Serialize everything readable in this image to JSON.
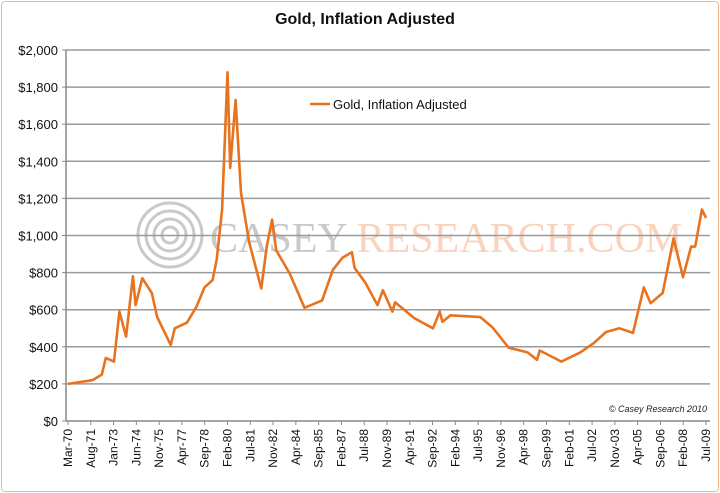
{
  "chart_data": {
    "type": "line",
    "title": "Gold, Inflation Adjusted",
    "xlabel": "",
    "ylabel": "",
    "ylim": [
      0,
      2000
    ],
    "yticks": [
      "$0",
      "$200",
      "$400",
      "$600",
      "$800",
      "$1,000",
      "$1,200",
      "$1,400",
      "$1,600",
      "$1,800",
      "$2,000"
    ],
    "xticks": [
      "Mar-70",
      "Aug-71",
      "Jan-73",
      "Jun-74",
      "Nov-75",
      "Apr-77",
      "Sep-78",
      "Feb-80",
      "Jul-81",
      "Nov-82",
      "Apr-84",
      "Sep-85",
      "Feb-87",
      "Jul-88",
      "Nov-89",
      "Apr-91",
      "Sep-92",
      "Feb-94",
      "Jul-95",
      "Nov-96",
      "Apr-98",
      "Sep-99",
      "Feb-01",
      "Jul-02",
      "Nov-03",
      "Apr-05",
      "Sep-06",
      "Feb-08",
      "Jul-09"
    ],
    "xrange": [
      "1970-03",
      "2009-07"
    ],
    "grid": true,
    "legend_position": "top-center",
    "series": [
      {
        "name": "Gold, Inflation Adjusted",
        "color": "#e8731e",
        "x": [
          "1970-03",
          "1971-09",
          "1972-04",
          "1972-07",
          "1973-01",
          "1973-05",
          "1973-10",
          "1974-03",
          "1974-05",
          "1974-10",
          "1975-05",
          "1975-09",
          "1976-07",
          "1976-10",
          "1977-07",
          "1978-02",
          "1978-08",
          "1979-02",
          "1979-05",
          "1979-09",
          "1980-01",
          "1980-03",
          "1980-07",
          "1980-11",
          "1981-05",
          "1982-02",
          "1982-06",
          "1982-10",
          "1983-01",
          "1983-11",
          "1984-10",
          "1985-11",
          "1986-07",
          "1987-02",
          "1987-09",
          "1987-11",
          "1988-07",
          "1989-04",
          "1989-08",
          "1990-03",
          "1990-05",
          "1991-07",
          "1992-09",
          "1993-02",
          "1993-04",
          "1993-10",
          "1995-08",
          "1996-05",
          "1997-05",
          "1998-07",
          "1999-02",
          "1999-04",
          "2000-08",
          "2001-10",
          "2002-08",
          "2003-05",
          "2004-03",
          "2005-01",
          "2005-09",
          "2006-02",
          "2006-11",
          "2007-07",
          "2008-02",
          "2008-08",
          "2008-11",
          "2009-04",
          "2009-07"
        ],
        "values": [
          200,
          220,
          250,
          340,
          320,
          590,
          455,
          780,
          625,
          770,
          690,
          560,
          410,
          500,
          530,
          615,
          720,
          760,
          870,
          1140,
          1880,
          1365,
          1730,
          1230,
          965,
          715,
          940,
          1085,
          920,
          795,
          610,
          650,
          815,
          880,
          910,
          825,
          745,
          625,
          705,
          590,
          640,
          555,
          500,
          590,
          535,
          570,
          560,
          505,
          395,
          370,
          330,
          380,
          320,
          370,
          420,
          480,
          500,
          475,
          720,
          635,
          690,
          985,
          775,
          940,
          940,
          1140,
          1095
        ]
      }
    ],
    "annotations": [
      "© Casey Research 2010"
    ],
    "watermark": "CASEY RESEARCH.COM"
  }
}
